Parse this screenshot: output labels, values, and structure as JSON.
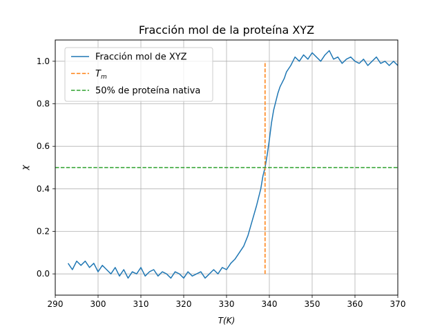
{
  "chart_data": {
    "type": "line",
    "title": "Fracción mol de la proteína XYZ",
    "xlabel": "T(K)",
    "ylabel": "χ",
    "xlim": [
      290,
      370
    ],
    "ylim": [
      -0.1,
      1.1
    ],
    "xticks": [
      "290",
      "300",
      "310",
      "320",
      "330",
      "340",
      "350",
      "360",
      "370"
    ],
    "yticks": [
      "0.0",
      "0.2",
      "0.4",
      "0.6",
      "0.8",
      "1.0"
    ],
    "grid": true,
    "legend_position": "top-left",
    "series": [
      {
        "name": "Fracción mol de XYZ",
        "color": "#1f77b4",
        "style": "solid",
        "x": [
          293.0,
          294.0,
          295.0,
          296.0,
          297.0,
          298.0,
          299.0,
          300.0,
          301.0,
          302.0,
          303.0,
          304.0,
          305.0,
          306.0,
          307.0,
          308.0,
          309.0,
          310.0,
          311.0,
          312.0,
          313.0,
          314.0,
          315.0,
          316.0,
          317.0,
          318.0,
          319.0,
          320.0,
          321.0,
          322.0,
          323.0,
          324.0,
          325.0,
          326.0,
          327.0,
          328.0,
          329.0,
          330.0,
          331.0,
          332.0,
          333.0,
          334.0,
          335.0,
          336.0,
          337.0,
          338.0,
          338.5,
          339.0,
          339.5,
          340.0,
          340.5,
          341.0,
          341.5,
          342.0,
          342.5,
          343.0,
          343.5,
          344.0,
          345.0,
          346.0,
          347.0,
          348.0,
          349.0,
          350.0,
          351.0,
          352.0,
          353.0,
          354.0,
          355.0,
          356.0,
          357.0,
          358.0,
          359.0,
          360.0,
          361.0,
          362.0,
          363.0,
          364.0,
          365.0,
          366.0,
          367.0,
          368.0,
          369.0,
          370.0
        ],
        "y": [
          0.05,
          0.02,
          0.06,
          0.04,
          0.06,
          0.03,
          0.05,
          0.01,
          0.04,
          0.02,
          0.0,
          0.03,
          -0.01,
          0.02,
          -0.02,
          0.01,
          0.0,
          0.03,
          -0.01,
          0.01,
          0.02,
          -0.01,
          0.01,
          0.0,
          -0.02,
          0.01,
          0.0,
          -0.02,
          0.01,
          -0.01,
          0.0,
          0.01,
          -0.02,
          0.0,
          0.02,
          0.0,
          0.03,
          0.02,
          0.05,
          0.07,
          0.1,
          0.13,
          0.18,
          0.25,
          0.32,
          0.4,
          0.46,
          0.5,
          0.56,
          0.63,
          0.71,
          0.77,
          0.81,
          0.85,
          0.88,
          0.9,
          0.92,
          0.95,
          0.98,
          1.02,
          1.0,
          1.03,
          1.01,
          1.04,
          1.02,
          1.0,
          1.03,
          1.05,
          1.01,
          1.02,
          0.99,
          1.01,
          1.02,
          1.0,
          0.99,
          1.01,
          0.98,
          1.0,
          1.02,
          0.99,
          1.0,
          0.98,
          1.0,
          0.98
        ]
      },
      {
        "name": "T_m",
        "color": "#ff7f0e",
        "style": "dashed",
        "x": [
          339.0,
          339.0
        ],
        "y": [
          0.0,
          1.0
        ]
      },
      {
        "name": "50% de proteína nativa",
        "color": "#2ca02c",
        "style": "dashed",
        "x": [
          290,
          370
        ],
        "y": [
          0.5,
          0.5
        ]
      }
    ]
  }
}
